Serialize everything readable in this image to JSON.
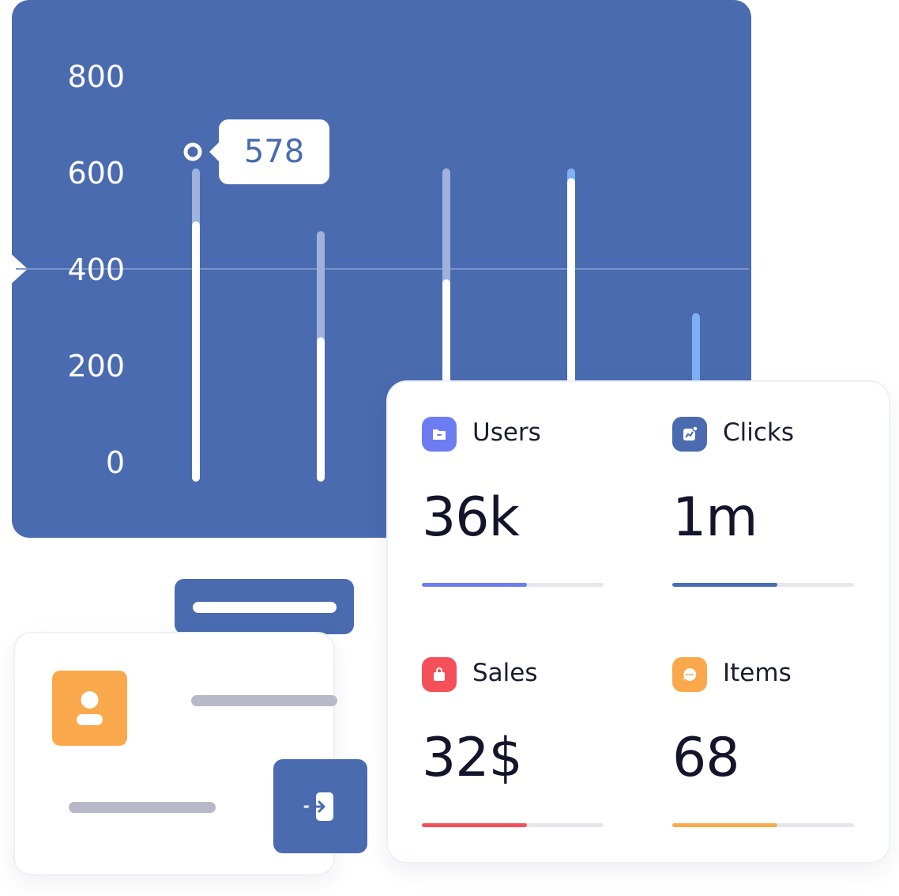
{
  "chart_data": {
    "type": "bar",
    "y_ticks": [
      "800",
      "600",
      "400",
      "200",
      "0"
    ],
    "ylim": [
      0,
      800
    ],
    "reference_line": 400,
    "tooltip_value": "578",
    "series": [
      {
        "values": [
          490,
          250,
          370,
          580,
          0
        ]
      },
      {
        "values": [
          600,
          470,
          600,
          600,
          300
        ]
      }
    ],
    "colors": {
      "background": "#4a6bb0",
      "bar_fill": "#ffffff",
      "bar_track": "#9fb2db",
      "highlight": "#7fb0f5"
    }
  },
  "stats": [
    {
      "label": "Users",
      "value": "36k",
      "icon": "folder-icon",
      "color": "#6e7cf2",
      "progress": 0.58
    },
    {
      "label": "Clicks",
      "value": "1m",
      "icon": "chart-icon",
      "color": "#4a6bb0",
      "progress": 0.58
    },
    {
      "label": "Sales",
      "value": "32$",
      "icon": "bag-icon",
      "color": "#f4505a",
      "progress": 0.58
    },
    {
      "label": "Items",
      "value": "68",
      "icon": "chat-icon",
      "color": "#f9a94c",
      "progress": 0.58
    }
  ],
  "login": {
    "avatar_icon": "user-icon",
    "button_icon": "login-icon",
    "accent": "#4a6bb0",
    "avatar_color": "#f9a94c"
  }
}
